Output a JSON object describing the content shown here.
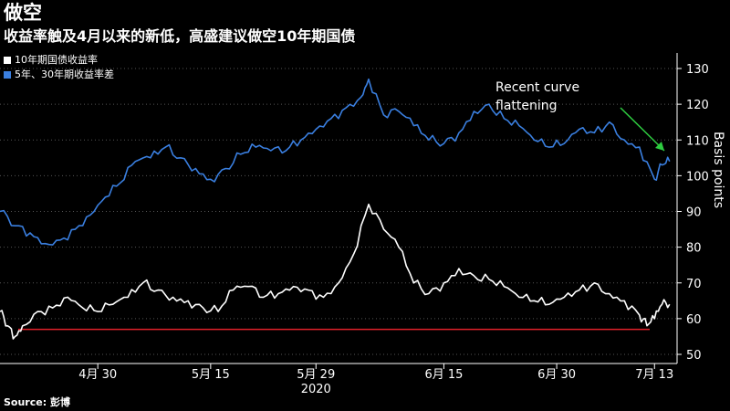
{
  "header": {
    "title": "做空",
    "subtitle": "收益率触及4月以来的新低，高盛建议做空10年期国债"
  },
  "legend": [
    {
      "label": "10年期国债收益率",
      "color": "#ffffff"
    },
    {
      "label": "5年、30年期收益率差",
      "color": "#3a7fe0"
    }
  ],
  "source": "Source: 彭博",
  "chart_data": {
    "type": "line",
    "ylabel": "Basis points",
    "ylim": [
      50,
      130
    ],
    "yticks": [
      50,
      60,
      70,
      80,
      90,
      100,
      110,
      120,
      130
    ],
    "xlim": [
      "2020-04-17",
      "2020-07-16"
    ],
    "x_ticks": [
      {
        "date": "2020-04-30",
        "label": "4月 30"
      },
      {
        "date": "2020-05-15",
        "label": "5月 15"
      },
      {
        "date": "2020-05-29",
        "label": "5月 29"
      },
      {
        "date": "2020-06-15",
        "label": "6月 15"
      },
      {
        "date": "2020-06-30",
        "label": "6月 30"
      },
      {
        "date": "2020-07-13",
        "label": "7月 13"
      }
    ],
    "x_year_label": {
      "date": "2020-05-29",
      "label": "2020"
    },
    "series": [
      {
        "name": "5年、30年期收益率差",
        "color": "#3a7fe0",
        "points": [
          [
            "2020-04-17",
            90
          ],
          [
            "2020-04-19",
            86
          ],
          [
            "2020-04-21",
            84
          ],
          [
            "2020-04-23",
            81
          ],
          [
            "2020-04-25",
            82
          ],
          [
            "2020-04-27",
            85
          ],
          [
            "2020-04-29",
            89
          ],
          [
            "2020-05-01",
            94
          ],
          [
            "2020-05-03",
            98
          ],
          [
            "2020-05-05",
            104
          ],
          [
            "2020-05-07",
            105
          ],
          [
            "2020-05-09",
            108
          ],
          [
            "2020-05-11",
            105
          ],
          [
            "2020-05-13",
            102
          ],
          [
            "2020-05-15",
            99
          ],
          [
            "2020-05-17",
            102
          ],
          [
            "2020-05-19",
            106
          ],
          [
            "2020-05-21",
            108
          ],
          [
            "2020-05-23",
            107
          ],
          [
            "2020-05-25",
            107
          ],
          [
            "2020-05-27",
            110
          ],
          [
            "2020-05-29",
            113
          ],
          [
            "2020-05-31",
            116
          ],
          [
            "2020-06-02",
            119
          ],
          [
            "2020-06-04",
            122
          ],
          [
            "2020-06-05",
            127
          ],
          [
            "2020-06-07",
            117
          ],
          [
            "2020-06-09",
            118
          ],
          [
            "2020-06-11",
            114
          ],
          [
            "2020-06-13",
            110
          ],
          [
            "2020-06-15",
            109
          ],
          [
            "2020-06-17",
            112
          ],
          [
            "2020-06-19",
            118
          ],
          [
            "2020-06-21",
            120
          ],
          [
            "2020-06-23",
            116
          ],
          [
            "2020-06-25",
            114
          ],
          [
            "2020-06-27",
            110
          ],
          [
            "2020-06-29",
            108
          ],
          [
            "2020-07-01",
            109
          ],
          [
            "2020-07-03",
            113
          ],
          [
            "2020-07-05",
            112
          ],
          [
            "2020-07-07",
            115
          ],
          [
            "2020-07-09",
            110
          ],
          [
            "2020-07-11",
            108
          ],
          [
            "2020-07-13",
            99
          ],
          [
            "2020-07-14",
            103
          ],
          [
            "2020-07-15",
            104
          ]
        ]
      },
      {
        "name": "10年期国债收益率",
        "color": "#ffffff",
        "points": [
          [
            "2020-04-17",
            62
          ],
          [
            "2020-04-18",
            58
          ],
          [
            "2020-04-19",
            55
          ],
          [
            "2020-04-20",
            58
          ],
          [
            "2020-04-22",
            62
          ],
          [
            "2020-04-24",
            63
          ],
          [
            "2020-04-26",
            66
          ],
          [
            "2020-04-28",
            63
          ],
          [
            "2020-04-30",
            62
          ],
          [
            "2020-05-02",
            64
          ],
          [
            "2020-05-04",
            66
          ],
          [
            "2020-05-06",
            70
          ],
          [
            "2020-05-08",
            68
          ],
          [
            "2020-05-10",
            66
          ],
          [
            "2020-05-12",
            65
          ],
          [
            "2020-05-14",
            63
          ],
          [
            "2020-05-16",
            62
          ],
          [
            "2020-05-18",
            68
          ],
          [
            "2020-05-20",
            69
          ],
          [
            "2020-05-22",
            66
          ],
          [
            "2020-05-24",
            67
          ],
          [
            "2020-05-26",
            69
          ],
          [
            "2020-05-28",
            68
          ],
          [
            "2020-05-30",
            66
          ],
          [
            "2020-06-01",
            70
          ],
          [
            "2020-06-03",
            78
          ],
          [
            "2020-06-05",
            92
          ],
          [
            "2020-06-07",
            85
          ],
          [
            "2020-06-09",
            80
          ],
          [
            "2020-06-11",
            70
          ],
          [
            "2020-06-13",
            67
          ],
          [
            "2020-06-15",
            70
          ],
          [
            "2020-06-17",
            74
          ],
          [
            "2020-06-19",
            72
          ],
          [
            "2020-06-21",
            71
          ],
          [
            "2020-06-23",
            69
          ],
          [
            "2020-06-25",
            66
          ],
          [
            "2020-06-27",
            65
          ],
          [
            "2020-06-29",
            64
          ],
          [
            "2020-07-01",
            66
          ],
          [
            "2020-07-03",
            68
          ],
          [
            "2020-07-05",
            70
          ],
          [
            "2020-07-07",
            67
          ],
          [
            "2020-07-09",
            65
          ],
          [
            "2020-07-11",
            61
          ],
          [
            "2020-07-12",
            58
          ],
          [
            "2020-07-13",
            60
          ],
          [
            "2020-07-14",
            64
          ],
          [
            "2020-07-15",
            64
          ]
        ]
      }
    ],
    "reference_line": {
      "y": 57,
      "color": "#e0202a"
    },
    "annotation": {
      "text_lines": [
        "Recent curve",
        "flattening"
      ],
      "arrow_color": "#2ecc40",
      "arrow_from": [
        "2020-07-03",
        120
      ],
      "arrow_to": [
        "2020-07-14",
        108
      ]
    }
  }
}
